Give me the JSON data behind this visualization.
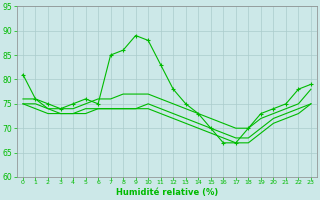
{
  "title": "",
  "xlabel": "Humidité relative (%)",
  "ylabel": "",
  "xlim": [
    -0.5,
    23.5
  ],
  "ylim": [
    60,
    95
  ],
  "yticks": [
    60,
    65,
    70,
    75,
    80,
    85,
    90,
    95
  ],
  "xticks": [
    0,
    1,
    2,
    3,
    4,
    5,
    6,
    7,
    8,
    9,
    10,
    11,
    12,
    13,
    14,
    15,
    16,
    17,
    18,
    19,
    20,
    21,
    22,
    23
  ],
  "bg_color": "#cce8e8",
  "grid_color": "#aacccc",
  "line_color": "#00bb00",
  "line1_x": [
    0,
    1,
    2,
    3,
    4,
    5,
    6,
    7,
    8,
    9,
    10,
    11,
    12,
    13,
    14,
    15,
    16,
    17,
    18,
    19,
    20,
    21,
    22,
    23
  ],
  "line1_y": [
    81,
    76,
    75,
    74,
    75,
    76,
    75,
    85,
    86,
    89,
    88,
    83,
    78,
    75,
    73,
    70,
    67,
    67,
    70,
    73,
    74,
    75,
    78,
    79
  ],
  "line2_x": [
    0,
    1,
    2,
    3,
    4,
    5,
    6,
    7,
    8,
    9,
    10,
    11,
    12,
    13,
    14,
    15,
    16,
    17,
    18,
    19,
    20,
    21,
    22,
    23
  ],
  "line2_y": [
    76,
    76,
    74,
    74,
    74,
    75,
    76,
    76,
    77,
    77,
    77,
    76,
    75,
    74,
    73,
    72,
    71,
    70,
    70,
    72,
    73,
    74,
    75,
    78
  ],
  "line3_x": [
    0,
    1,
    2,
    3,
    4,
    5,
    6,
    7,
    8,
    9,
    10,
    11,
    12,
    13,
    14,
    15,
    16,
    17,
    18,
    19,
    20,
    21,
    22,
    23
  ],
  "line3_y": [
    75,
    75,
    74,
    73,
    73,
    74,
    74,
    74,
    74,
    74,
    75,
    74,
    73,
    72,
    71,
    70,
    69,
    68,
    68,
    70,
    72,
    73,
    74,
    75
  ],
  "line4_x": [
    0,
    1,
    2,
    3,
    4,
    5,
    6,
    7,
    8,
    9,
    10,
    11,
    12,
    13,
    14,
    15,
    16,
    17,
    18,
    19,
    20,
    21,
    22,
    23
  ],
  "line4_y": [
    75,
    74,
    73,
    73,
    73,
    73,
    74,
    74,
    74,
    74,
    74,
    73,
    72,
    71,
    70,
    69,
    68,
    67,
    67,
    69,
    71,
    72,
    73,
    75
  ]
}
